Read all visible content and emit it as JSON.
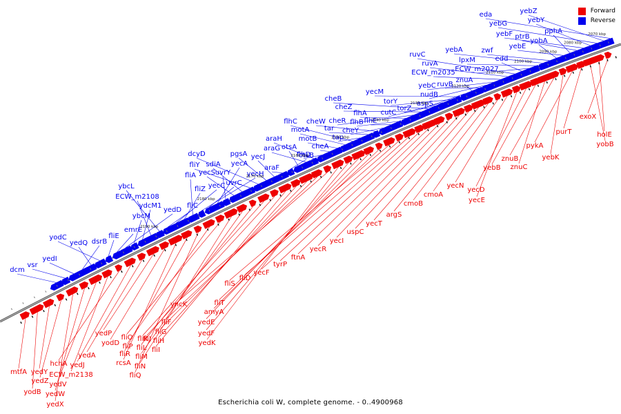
{
  "caption": "Escherichia coli W, complete genome. - 0..4900968",
  "legend": [
    {
      "label": "Forward",
      "color": "#ee0000"
    },
    {
      "label": "Reverse",
      "color": "#0000ee"
    }
  ],
  "colors": {
    "forward": "#ee0000",
    "reverse": "#0000ee",
    "axis": "#888888"
  },
  "kbp_ticks": [
    "2070 kbp",
    "2080 kbp",
    "2090 kbp",
    "2100 kbp",
    "2110 kbp",
    "2120 kbp",
    "2130 kbp",
    "2140 kbp",
    "2150 kbp",
    "2160 kbp",
    "2170 kbp",
    "2180 kbp",
    "2190 kbp"
  ],
  "reverse_genes": [
    "eda",
    "yebZ",
    "yebG",
    "yebY",
    "yebF",
    "ptrB",
    "pphA",
    "yebE",
    "yobA",
    "zwf",
    "yebA",
    "lpxM",
    "ECW_m2027",
    "edd",
    "ruvC",
    "ruvA",
    "ECW_m2035",
    "yebC",
    "nudB",
    "ruvB",
    "znuA",
    "aspS",
    "yecM",
    "torY",
    "torZ",
    "cutC",
    "cheB",
    "cheZ",
    "cheR",
    "flhA",
    "flhB",
    "flhE",
    "cheY",
    "cheW",
    "tar",
    "tap",
    "flhC",
    "motA",
    "motB",
    "cheA",
    "flhD",
    "araH",
    "araG",
    "otsA",
    "otsB",
    "araF",
    "yecJ",
    "pgsA",
    "dcyD",
    "fliY",
    "sdiA",
    "yecS",
    "uvrY",
    "yecA",
    "uvrC",
    "yecH",
    "fliA",
    "fliZ",
    "yecC",
    "fliC",
    "ybcL",
    "ECW_m2108",
    "ydcM1",
    "ybcM",
    "yedD",
    "emrE",
    "fliE",
    "yodC",
    "yedQ",
    "dsrB",
    "yedI",
    "vsr",
    "dcm"
  ],
  "forward_genes": [
    "exoX",
    "holE",
    "yobB",
    "purT",
    "pykA",
    "yebK",
    "znuB",
    "znuC",
    "yebB",
    "yecD",
    "yecE",
    "yecN",
    "cmoA",
    "cmoB",
    "argS",
    "yecT",
    "uspC",
    "yecI",
    "yecR",
    "ftnA",
    "tyrP",
    "yecF",
    "fliD",
    "fliS",
    "fliT",
    "amyA",
    "yedE",
    "yedF",
    "yedK",
    "yncK",
    "fliF",
    "fliG",
    "fliH",
    "fliI",
    "fliJ",
    "fliK",
    "fliL",
    "fliM",
    "fliN",
    "fliO",
    "fliP",
    "fliQ",
    "fliR",
    "rcsA",
    "yodD",
    "yedP",
    "yedA",
    "yedJ",
    "hchA",
    "ECW_m2138",
    "yedV",
    "yedW",
    "yedX",
    "yedZ",
    "yedY",
    "yodB",
    "mtfA"
  ]
}
